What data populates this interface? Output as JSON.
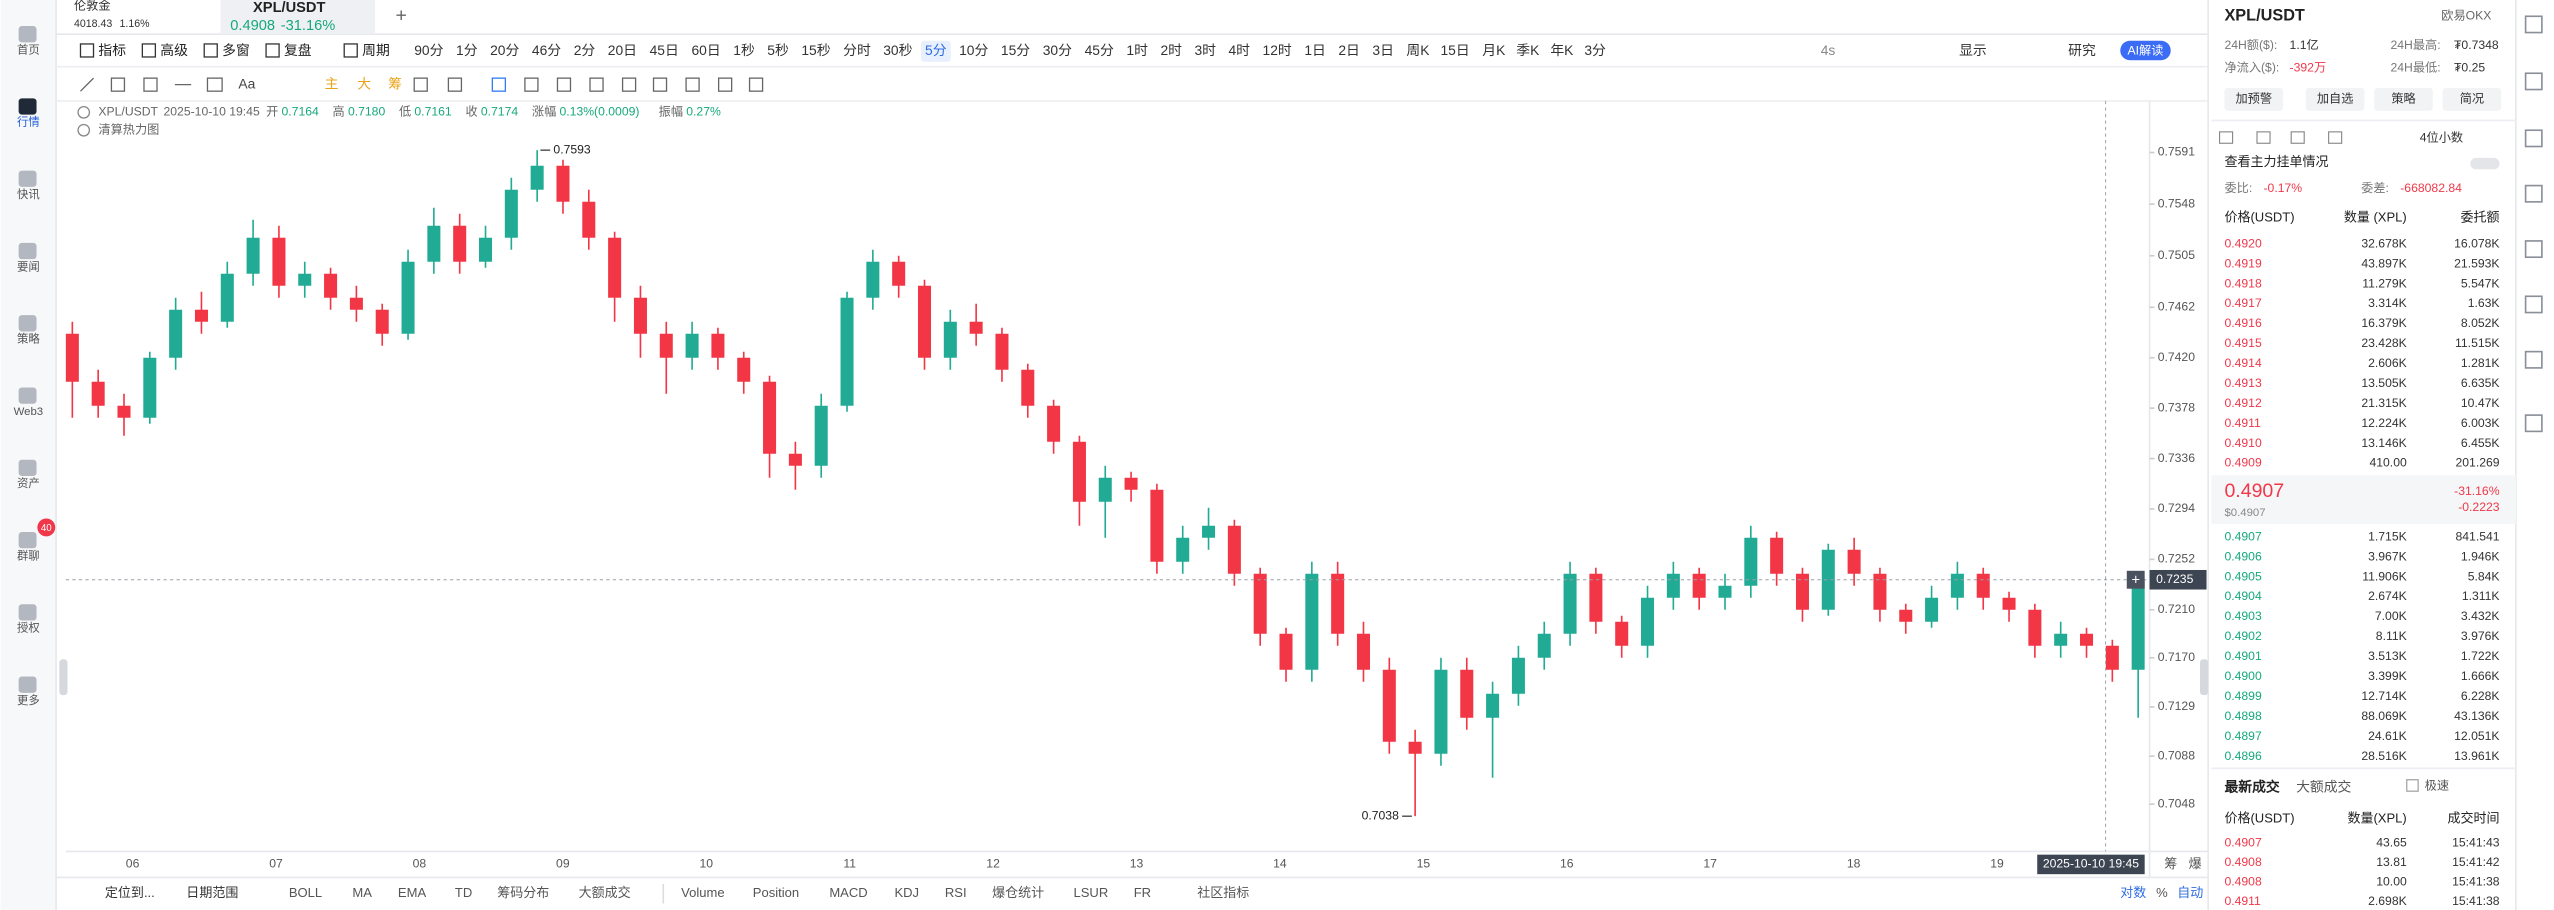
{
  "nav": [
    "首页",
    "行情",
    "快讯",
    "要闻",
    "策略",
    "Web3",
    "资产",
    "群聊",
    "授权",
    "更多"
  ],
  "nav_badge": "40",
  "tabs": [
    {
      "name": "伦敦金",
      "price": "4018.43",
      "change": "1.16%"
    },
    {
      "name": "XPL/USDT",
      "price": "0.4908",
      "change": "-31.16%"
    }
  ],
  "toolbar": {
    "buttons": [
      "指标",
      "高级",
      "多窗",
      "复盘",
      "周期"
    ],
    "periods": [
      "90分",
      "1分",
      "20分",
      "46分",
      "2分",
      "20日",
      "45日",
      "60日",
      "1秒",
      "5秒",
      "15秒",
      "分时",
      "30秒",
      "5分",
      "10分",
      "15分",
      "30分",
      "45分",
      "1时",
      "2时",
      "3时",
      "4时",
      "12时",
      "1日",
      "2日",
      "3日",
      "周K",
      "15日",
      "月K",
      "季K",
      "年K",
      "3分"
    ],
    "active_period": 13,
    "right": [
      "4s",
      "显示",
      "研究"
    ],
    "ai_button": "AI解读"
  },
  "draw_tools": [
    "Aa",
    "主",
    "大",
    "筹"
  ],
  "chart": {
    "type": "candlestick",
    "symbol": "XPL/USDT",
    "time": "2025-10-10 19:45",
    "ohlc": [
      {
        "label": "开",
        "value": "0.7164"
      },
      {
        "label": "高",
        "value": "0.7180"
      },
      {
        "label": "低",
        "value": "0.7161"
      },
      {
        "label": "收",
        "value": "0.7174"
      },
      {
        "label": "涨幅",
        "value": "0.13%(0.0009)"
      },
      {
        "label": "振幅",
        "value": "0.27%"
      }
    ],
    "overlay": "清算热力图",
    "up_color": "#22ab94",
    "down_color": "#f23645",
    "ylim": [
      0.701,
      0.7634
    ],
    "yticks": [
      0.7591,
      0.7548,
      0.7505,
      0.7462,
      {
        "value": 0.742,
        "label": "0.7420"
      },
      0.7378,
      0.7336,
      0.7294,
      0.7252,
      {
        "value": 0.721,
        "label": "0.7210"
      },
      {
        "value": 0.717,
        "label": "0.7170"
      },
      0.7129,
      0.7088,
      0.7048
    ],
    "grid": false,
    "x_labels": [
      "06",
      "07",
      "08",
      "09",
      "10",
      "11",
      "12",
      "13",
      "14",
      "15",
      "16",
      "17",
      "18",
      "19"
    ],
    "max_mark": 0.7593,
    "min_mark": 0.7038,
    "crosshair_price": 0.7235,
    "crosshair_time": "2025-10-10 19:45",
    "axis_tags": [
      "筹",
      "爆"
    ],
    "candles": [
      [
        0.744,
        0.745,
        0.737,
        0.74
      ],
      [
        0.74,
        0.741,
        0.737,
        0.738
      ],
      [
        0.738,
        0.739,
        0.7355,
        0.737
      ],
      [
        0.737,
        0.7425,
        0.7365,
        0.742
      ],
      [
        0.742,
        0.747,
        0.741,
        0.746
      ],
      [
        0.746,
        0.7475,
        0.744,
        0.745
      ],
      [
        0.745,
        0.75,
        0.7445,
        0.749
      ],
      [
        0.749,
        0.7535,
        0.748,
        0.752
      ],
      [
        0.752,
        0.753,
        0.747,
        0.748
      ],
      [
        0.748,
        0.75,
        0.747,
        0.749
      ],
      [
        0.749,
        0.7495,
        0.746,
        0.747
      ],
      [
        0.747,
        0.748,
        0.745,
        0.746
      ],
      [
        0.746,
        0.7465,
        0.743,
        0.744
      ],
      [
        0.744,
        0.751,
        0.7435,
        0.75
      ],
      [
        0.75,
        0.7545,
        0.749,
        0.753
      ],
      [
        0.753,
        0.754,
        0.749,
        0.75
      ],
      [
        0.75,
        0.753,
        0.7495,
        0.752
      ],
      [
        0.752,
        0.757,
        0.751,
        0.756
      ],
      [
        0.756,
        0.7593,
        0.755,
        0.758
      ],
      [
        0.758,
        0.7585,
        0.754,
        0.755
      ],
      [
        0.755,
        0.756,
        0.751,
        0.752
      ],
      [
        0.752,
        0.7525,
        0.745,
        0.747
      ],
      [
        0.747,
        0.748,
        0.742,
        0.744
      ],
      [
        0.744,
        0.745,
        0.739,
        0.742
      ],
      [
        0.742,
        0.745,
        0.741,
        0.744
      ],
      [
        0.744,
        0.7445,
        0.741,
        0.742
      ],
      [
        0.742,
        0.7425,
        0.739,
        0.74
      ],
      [
        0.74,
        0.7405,
        0.732,
        0.734
      ],
      [
        0.734,
        0.735,
        0.731,
        0.733
      ],
      [
        0.733,
        0.739,
        0.732,
        0.738
      ],
      [
        0.738,
        0.7475,
        0.7375,
        0.747
      ],
      [
        0.747,
        0.751,
        0.746,
        0.75
      ],
      [
        0.75,
        0.7505,
        0.747,
        0.748
      ],
      [
        0.748,
        0.7485,
        0.741,
        0.742
      ],
      [
        0.742,
        0.746,
        0.741,
        0.745
      ],
      [
        0.745,
        0.7465,
        0.743,
        0.744
      ],
      [
        0.744,
        0.7445,
        0.74,
        0.741
      ],
      [
        0.741,
        0.7415,
        0.737,
        0.738
      ],
      [
        0.738,
        0.7385,
        0.734,
        0.735
      ],
      [
        0.735,
        0.7355,
        0.728,
        0.73
      ],
      [
        0.73,
        0.733,
        0.727,
        0.732
      ],
      [
        0.732,
        0.7325,
        0.73,
        0.731
      ],
      [
        0.731,
        0.7315,
        0.724,
        0.725
      ],
      [
        0.725,
        0.728,
        0.724,
        0.727
      ],
      [
        0.727,
        0.7295,
        0.726,
        0.728
      ],
      [
        0.728,
        0.7285,
        0.723,
        0.724
      ],
      [
        0.724,
        0.7245,
        0.718,
        0.719
      ],
      [
        0.719,
        0.7195,
        0.715,
        0.716
      ],
      [
        0.716,
        0.725,
        0.715,
        0.724
      ],
      [
        0.724,
        0.725,
        0.718,
        0.719
      ],
      [
        0.719,
        0.72,
        0.715,
        0.716
      ],
      [
        0.716,
        0.717,
        0.709,
        0.71
      ],
      [
        0.71,
        0.711,
        0.7038,
        0.709
      ],
      [
        0.709,
        0.717,
        0.708,
        0.716
      ],
      [
        0.716,
        0.717,
        0.711,
        0.712
      ],
      [
        0.712,
        0.715,
        0.707,
        0.714
      ],
      [
        0.714,
        0.718,
        0.713,
        0.717
      ],
      [
        0.717,
        0.72,
        0.716,
        0.719
      ],
      [
        0.719,
        0.725,
        0.718,
        0.724
      ],
      [
        0.724,
        0.7245,
        0.719,
        0.72
      ],
      [
        0.72,
        0.7205,
        0.717,
        0.718
      ],
      [
        0.718,
        0.723,
        0.717,
        0.722
      ],
      [
        0.722,
        0.725,
        0.721,
        0.724
      ],
      [
        0.724,
        0.7245,
        0.721,
        0.722
      ],
      [
        0.722,
        0.724,
        0.721,
        0.723
      ],
      [
        0.723,
        0.728,
        0.722,
        0.727
      ],
      [
        0.727,
        0.7275,
        0.723,
        0.724
      ],
      [
        0.724,
        0.7245,
        0.72,
        0.721
      ],
      [
        0.721,
        0.7265,
        0.7205,
        0.726
      ],
      [
        0.726,
        0.727,
        0.723,
        0.724
      ],
      [
        0.724,
        0.7245,
        0.72,
        0.721
      ],
      [
        0.721,
        0.7215,
        0.719,
        0.72
      ],
      [
        0.72,
        0.723,
        0.7195,
        0.722
      ],
      [
        0.722,
        0.725,
        0.721,
        0.724
      ],
      [
        0.724,
        0.7245,
        0.721,
        0.722
      ],
      [
        0.722,
        0.7225,
        0.72,
        0.721
      ],
      [
        0.721,
        0.7215,
        0.717,
        0.718
      ],
      [
        0.718,
        0.72,
        0.717,
        0.719
      ],
      [
        0.719,
        0.7195,
        0.717,
        0.718
      ],
      [
        0.718,
        0.7185,
        0.715,
        0.716
      ],
      [
        0.716,
        0.724,
        0.712,
        0.7235
      ]
    ]
  },
  "bottom_bar": {
    "left": [
      "定位到...",
      "日期范围"
    ],
    "main_indicators": [
      "BOLL",
      "MA",
      "EMA",
      "TD",
      "筹码分布",
      "大额成交"
    ],
    "sub_indicators": [
      "Volume",
      "Position",
      "MACD",
      "KDJ",
      "RSI",
      "爆仓统计",
      "LSUR",
      "FR",
      "社区指标"
    ],
    "right": [
      "对数",
      "%",
      "自动"
    ]
  },
  "panel": {
    "symbol": "XPL/USDT",
    "exchange": "欧易OKX",
    "stats": [
      {
        "label": "24H额($):",
        "value": "1.1亿"
      },
      {
        "label": "24H最高:",
        "value": "₮0.7348"
      },
      {
        "label": "净流入($):",
        "value": "-392万"
      },
      {
        "label": "24H最低:",
        "value": "₮0.25"
      }
    ],
    "buttons": [
      "加预警",
      "加自选",
      "策略",
      "简况"
    ],
    "precision": "4位小数",
    "depth_link": "查看主力挂单情况",
    "ratio": {
      "label": "委比:",
      "value": "-0.17%"
    },
    "diff": {
      "label": "委差:",
      "value": "-668082.84"
    },
    "book_header": [
      "价格(USDT)",
      "数量 (XPL)",
      "委托额"
    ],
    "asks": [
      [
        "0.4920",
        "32.678K",
        "16.078K"
      ],
      [
        "0.4919",
        "43.897K",
        "21.593K"
      ],
      [
        "0.4918",
        "11.279K",
        "5.547K"
      ],
      [
        "0.4917",
        "3.314K",
        "1.63K"
      ],
      [
        "0.4916",
        "16.379K",
        "8.052K"
      ],
      [
        "0.4915",
        "23.428K",
        "11.515K"
      ],
      [
        "0.4914",
        "2.606K",
        "1.281K"
      ],
      [
        "0.4913",
        "13.505K",
        "6.635K"
      ],
      [
        "0.4912",
        "21.315K",
        "10.47K"
      ],
      [
        "0.4911",
        "12.224K",
        "6.003K"
      ],
      [
        "0.4910",
        "13.146K",
        "6.455K"
      ],
      [
        "0.4909",
        "410.00",
        "201.269"
      ]
    ],
    "last_price": "0.4907",
    "last_usd": "$0.4907",
    "change_pct": "-31.16%",
    "change_abs": "-0.2223",
    "bids": [
      [
        "0.4907",
        "1.715K",
        "841.541"
      ],
      [
        "0.4906",
        "3.967K",
        "1.946K"
      ],
      [
        "0.4905",
        "11.906K",
        "5.84K"
      ],
      [
        "0.4904",
        "2.674K",
        "1.311K"
      ],
      [
        "0.4903",
        "7.00K",
        "3.432K"
      ],
      [
        "0.4902",
        "8.11K",
        "3.976K"
      ],
      [
        "0.4901",
        "3.513K",
        "1.722K"
      ],
      [
        "0.4900",
        "3.399K",
        "1.666K"
      ],
      [
        "0.4899",
        "12.714K",
        "6.228K"
      ],
      [
        "0.4898",
        "88.069K",
        "43.136K"
      ],
      [
        "0.4897",
        "24.61K",
        "12.051K"
      ],
      [
        "0.4896",
        "28.516K",
        "13.961K"
      ]
    ],
    "trade_tabs": [
      "最新成交",
      "大额成交"
    ],
    "fast": "极速",
    "trade_header": [
      "价格(USDT)",
      "数量(XPL)",
      "成交时间"
    ],
    "trades": [
      [
        "0.4907",
        "43.65",
        "15:41:43"
      ],
      [
        "0.4908",
        "13.81",
        "15:41:42"
      ],
      [
        "0.4908",
        "10.00",
        "15:41:38"
      ],
      [
        "0.4911",
        "2.698K",
        "15:41:38"
      ]
    ]
  }
}
